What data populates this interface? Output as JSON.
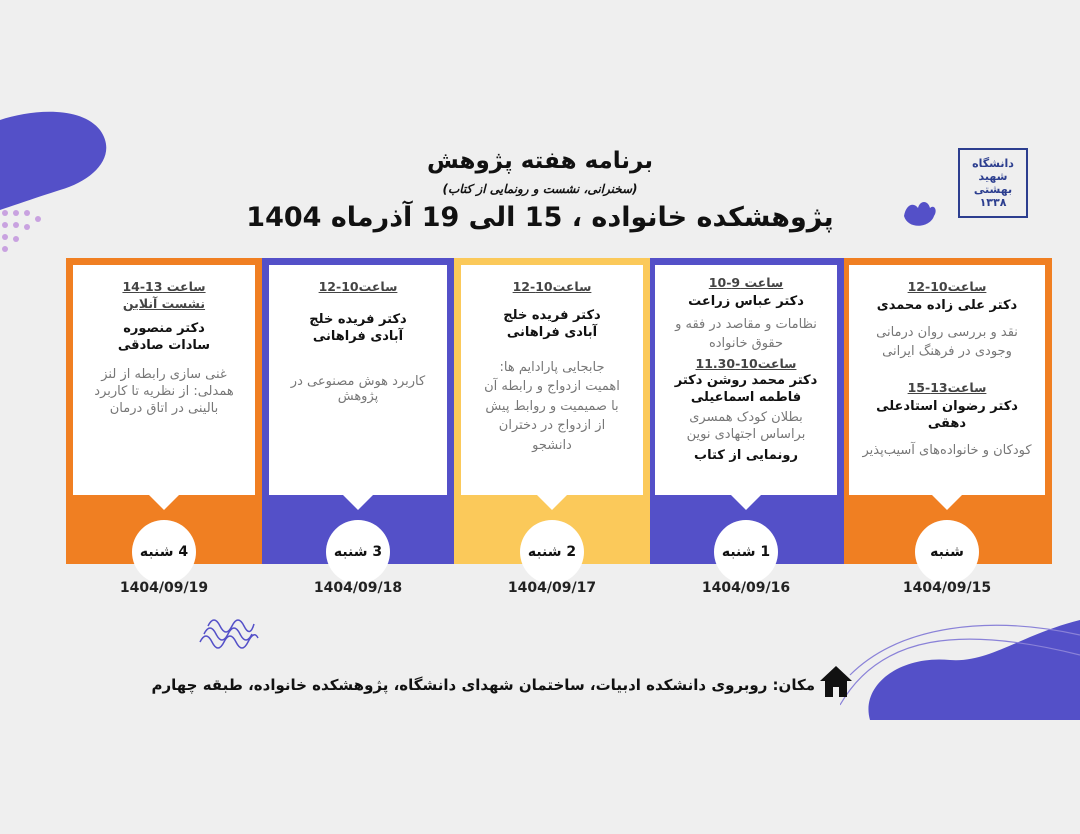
{
  "header": {
    "title": "برنامه هفته پژوهش",
    "subtitle": "(سخنرانی، نشست و رونمایی از کتاب)",
    "headline": "پژوهشکده خانواده ، 15 الی 19 آذرماه 1404"
  },
  "logo": {
    "text": "دانشگاه شهید بهشتی ۱۳۳۸"
  },
  "colors": {
    "orange": "#f07f22",
    "purple": "#5450c8",
    "yellow": "#fbc95a"
  },
  "days": [
    {
      "day": "شنبه",
      "date": "1404/09/15",
      "color": "orange",
      "sessions": [
        {
          "time": "ساعت10-12",
          "speaker": "دکتر علی زاده محمدی",
          "topic": "نقد و بررسی روان درمانی وجودی در فرهنگ ایرانی"
        },
        {
          "time": "ساعت13-15",
          "speaker": "دکتر رضوان استادعلی دهقی",
          "topic": "کودکان و خانواده‌های آسیب‌پذیر"
        }
      ]
    },
    {
      "day": "1 شنبه",
      "date": "1404/09/16",
      "color": "purple",
      "sessions": [
        {
          "time": "ساعت 9-10",
          "speaker": "دکتر عباس زراعت",
          "topic": "نظامات و مقاصد در فقه و حقوق خانواده"
        },
        {
          "time": "ساعت10-11.30",
          "speaker": "دکتر محمد روشن دکتر فاطمه اسماعیلی",
          "topic": "بطلان کودک همسری براساس اجتهادی نوین",
          "note": "رونمایی از کتاب"
        }
      ]
    },
    {
      "day": "2 شنبه",
      "date": "1404/09/17",
      "color": "yellow",
      "sessions": [
        {
          "time": "ساعت10-12",
          "speaker": "دکتر فریده خلج آبادی فراهانی",
          "topic": "جابجایی پارادایم ها: اهمیت ازدواج و رابطه آن با صمیمیت و روابط پیش از ازدواج در دختران دانشجو"
        }
      ]
    },
    {
      "day": "3 شنبه",
      "date": "1404/09/18",
      "color": "purple",
      "sessions": [
        {
          "time": "ساعت10-12",
          "speaker": "دکتر فریده خلج آبادی فراهانی",
          "topic": "کاربرد هوش مصنوعی در پژوهش"
        }
      ]
    },
    {
      "day": "4 شنبه",
      "date": "1404/09/19",
      "color": "orange",
      "sessions": [
        {
          "time": "ساعت 13-14",
          "subtime": "نشست آنلاین",
          "speaker": "دکتر منصوره سادات صادقی",
          "topic": "غنی سازی رابطه از لنز همدلی: از نظریه تا کاربرد بالینی در اتاق درمان"
        }
      ]
    }
  ],
  "location": "مکان: روبروی دانشکده ادبیات، ساختمان شهدای دانشگاه، پژوهشکده خانواده، طبقه چهارم"
}
